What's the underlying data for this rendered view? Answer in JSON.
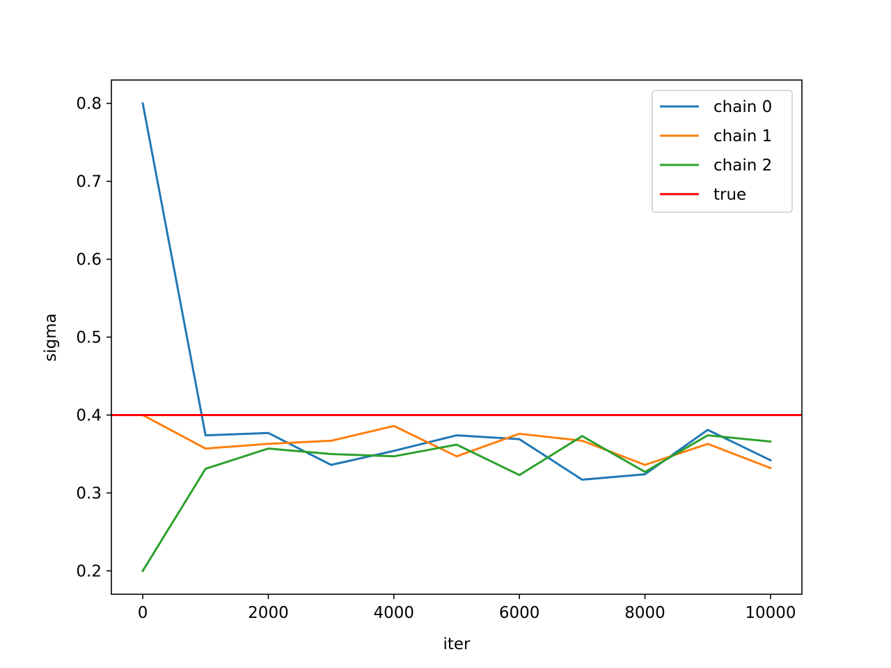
{
  "chart_data": {
    "type": "line",
    "title": "",
    "xlabel": "iter",
    "ylabel": "sigma",
    "xlim": [
      -500,
      10500
    ],
    "ylim": [
      0.17,
      0.83
    ],
    "xticks": [
      0,
      2000,
      4000,
      6000,
      8000,
      10000
    ],
    "xtick_labels": [
      "0",
      "2000",
      "4000",
      "6000",
      "8000",
      "10000"
    ],
    "yticks": [
      0.2,
      0.3,
      0.4,
      0.5,
      0.6,
      0.7,
      0.8
    ],
    "ytick_labels": [
      "0.2",
      "0.3",
      "0.4",
      "0.5",
      "0.6",
      "0.7",
      "0.8"
    ],
    "x": [
      0,
      1000,
      2000,
      3000,
      4000,
      5000,
      6000,
      7000,
      8000,
      9000,
      10000
    ],
    "legend_position": "top-right",
    "grid": false,
    "series": [
      {
        "name": "chain 0",
        "color": "#1f77b4",
        "values": [
          0.8,
          0.374,
          0.377,
          0.336,
          0.354,
          0.374,
          0.369,
          0.317,
          0.324,
          0.381,
          0.342
        ]
      },
      {
        "name": "chain 1",
        "color": "#ff7f0e",
        "values": [
          0.4,
          0.357,
          0.363,
          0.367,
          0.386,
          0.347,
          0.376,
          0.367,
          0.336,
          0.363,
          0.332
        ]
      },
      {
        "name": "chain 2",
        "color": "#2ca02c",
        "values": [
          0.2,
          0.331,
          0.357,
          0.35,
          0.347,
          0.362,
          0.323,
          0.373,
          0.327,
          0.374,
          0.366
        ]
      }
    ],
    "reference_line": {
      "name": "true",
      "value": 0.4,
      "color": "#ff0000"
    }
  }
}
